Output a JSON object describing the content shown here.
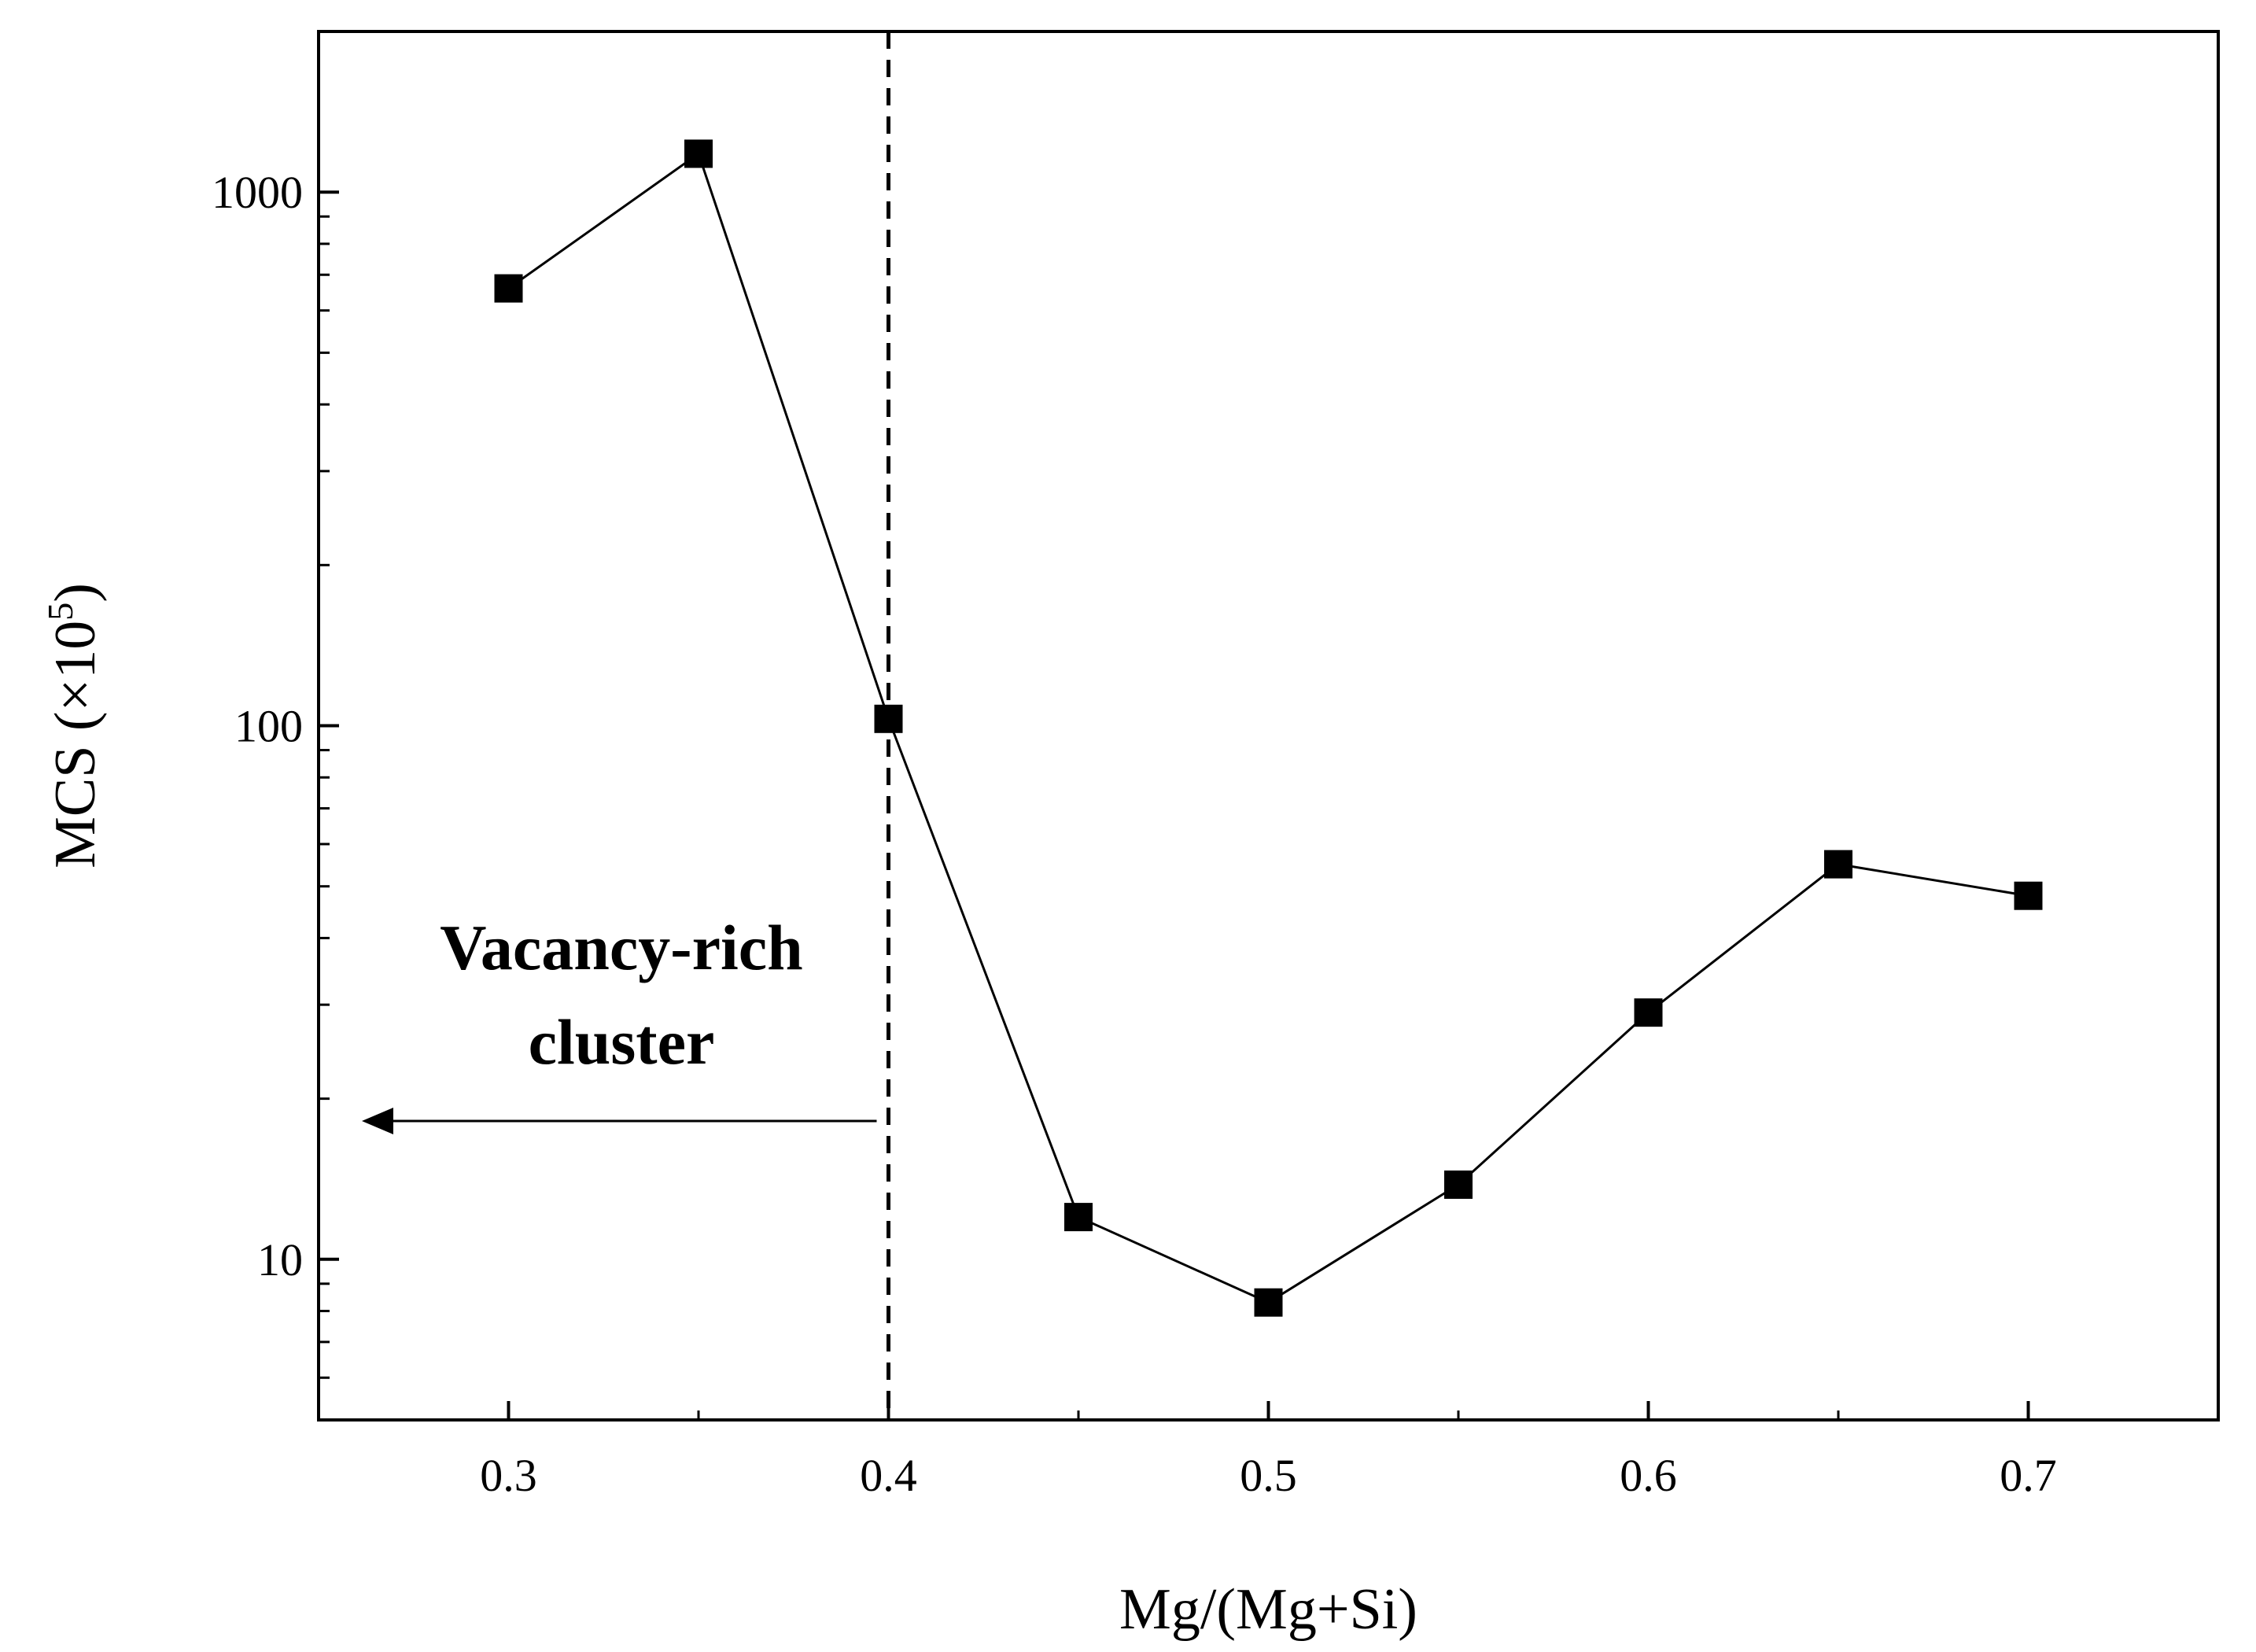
{
  "chart_data": {
    "type": "line",
    "title": "",
    "xlabel": "Mg/(Mg+Si)",
    "ylabel_main": "MCS (×10",
    "ylabel_sup": "5",
    "ylabel_close": ")",
    "ylabel": "MCS (×10^5)",
    "xlim": [
      0.25,
      0.75
    ],
    "ylim": [
      5,
      2000
    ],
    "yscale": "log",
    "grid": false,
    "x_ticks": [
      "0.3",
      "0.4",
      "0.5",
      "0.6",
      "0.7"
    ],
    "y_ticks": [
      "10",
      "100",
      "1000"
    ],
    "series": [
      {
        "marker": "square",
        "color": "#000000",
        "x": [
          0.3,
          0.35,
          0.4,
          0.45,
          0.5,
          0.55,
          0.6,
          0.65,
          0.7
        ],
        "y": [
          660,
          1180,
          103,
          12,
          8.3,
          13.8,
          29,
          55,
          48
        ]
      }
    ],
    "reference_line": {
      "x": 0.4,
      "style": "dashed"
    },
    "annotation": {
      "line1": "Vacancy-rich",
      "line2": "cluster",
      "arrow": "left"
    }
  }
}
